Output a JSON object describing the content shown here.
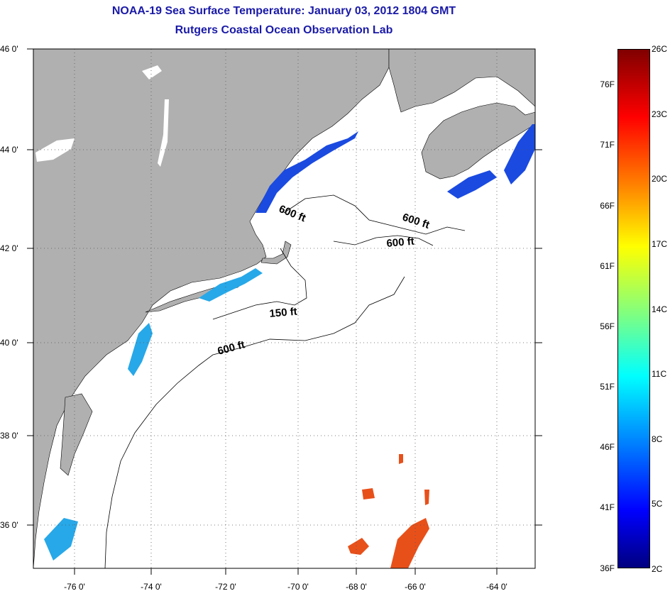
{
  "title": {
    "line1": "NOAA-19 Sea Surface Temperature:  January 03, 2012 1804 GMT",
    "line2": "Rutgers Coastal Ocean Observation Lab"
  },
  "map": {
    "lat_labels": [
      "46 0'",
      "44 0'",
      "42 0'",
      "40 0'",
      "38 0'",
      "36 0'"
    ],
    "lon_labels": [
      "-76 0'",
      "-74 0'",
      "-72 0'",
      "-70 0'",
      "-68 0'",
      "-66 0'",
      "-64 0'"
    ],
    "lat_range": [
      35.0,
      46.0
    ],
    "lon_range": [
      -77.0,
      -63.0
    ],
    "grid": "dotted",
    "colors": {
      "land": "#b0b0b0",
      "ocean_nodata": "#ffffff",
      "cold_water": "#1a4ae0",
      "mid_water": "#27a8e8",
      "warm_water": "#e8501a"
    },
    "contours": [
      {
        "label": "600 ft"
      },
      {
        "label": "600 ft"
      },
      {
        "label": "600 ft"
      },
      {
        "label": "150 ft"
      },
      {
        "label": "600 ft"
      }
    ]
  },
  "colorbar": {
    "fahrenheit": [
      "76F",
      "71F",
      "66F",
      "61F",
      "56F",
      "51F",
      "46F",
      "41F",
      "36F"
    ],
    "celsius": [
      "26C",
      "23C",
      "20C",
      "17C",
      "14C",
      "11C",
      "8C",
      "5C",
      "2C"
    ],
    "range_c": [
      2,
      26
    ]
  }
}
